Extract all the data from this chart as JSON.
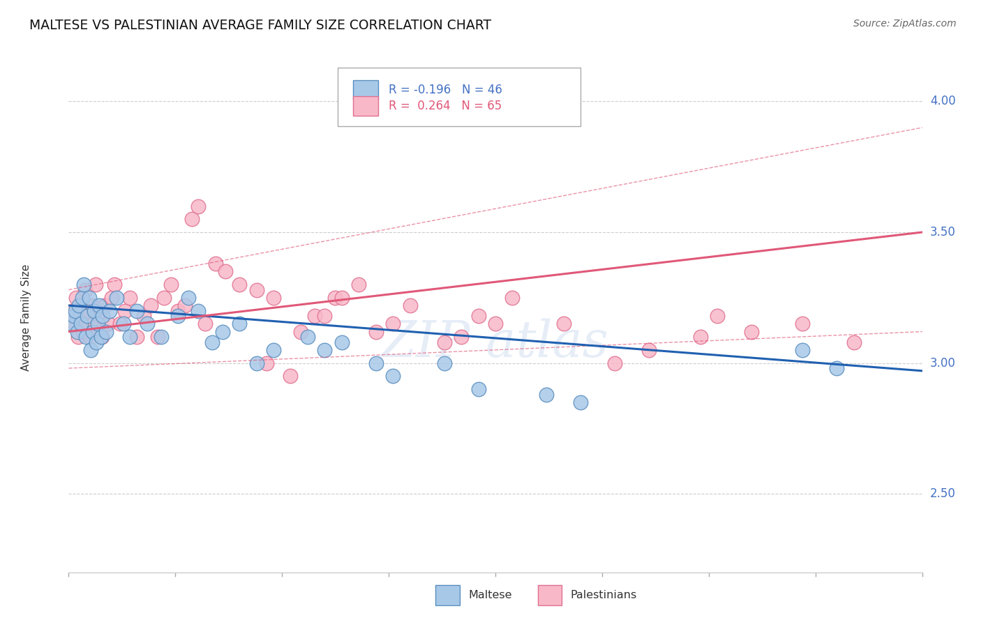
{
  "title": "MALTESE VS PALESTINIAN AVERAGE FAMILY SIZE CORRELATION CHART",
  "source": "Source: ZipAtlas.com",
  "ylabel": "Average Family Size",
  "xmin": 0.0,
  "xmax": 25.0,
  "ymin": 2.2,
  "ymax": 4.15,
  "yticks": [
    2.5,
    3.0,
    3.5,
    4.0
  ],
  "maltese_color": "#a8c8e8",
  "maltese_edge_color": "#5a8fc0",
  "maltese_line_color": "#2060b0",
  "palestinians_color": "#f8b8c8",
  "palestinians_edge_color": "#e07090",
  "palestinians_line_color": "#e05878",
  "maltese_line_y0": 3.22,
  "maltese_line_y1": 2.97,
  "palestinians_line_y0": 3.12,
  "palestinians_line_y1": 3.5,
  "palestinians_ci_upper_y0": 3.28,
  "palestinians_ci_upper_y1": 3.9,
  "palestinians_ci_lower_y0": 2.98,
  "palestinians_ci_lower_y1": 3.12,
  "maltese_x": [
    0.1,
    0.15,
    0.2,
    0.25,
    0.3,
    0.35,
    0.4,
    0.45,
    0.5,
    0.55,
    0.6,
    0.65,
    0.7,
    0.75,
    0.8,
    0.85,
    0.9,
    0.95,
    1.0,
    1.1,
    1.2,
    1.4,
    1.6,
    1.8,
    2.0,
    2.3,
    2.7,
    3.2,
    3.5,
    3.8,
    4.2,
    4.5,
    5.0,
    5.5,
    6.0,
    7.0,
    7.5,
    8.0,
    9.0,
    9.5,
    11.0,
    12.0,
    14.0,
    15.0,
    21.5,
    22.5
  ],
  "maltese_y": [
    3.15,
    3.18,
    3.2,
    3.12,
    3.22,
    3.15,
    3.25,
    3.3,
    3.1,
    3.18,
    3.25,
    3.05,
    3.12,
    3.2,
    3.08,
    3.15,
    3.22,
    3.1,
    3.18,
    3.12,
    3.2,
    3.25,
    3.15,
    3.1,
    3.2,
    3.15,
    3.1,
    3.18,
    3.25,
    3.2,
    3.08,
    3.12,
    3.15,
    3.0,
    3.05,
    3.1,
    3.05,
    3.08,
    3.0,
    2.95,
    3.0,
    2.9,
    2.88,
    2.85,
    3.05,
    2.98
  ],
  "palestinians_x": [
    0.12,
    0.18,
    0.22,
    0.28,
    0.33,
    0.38,
    0.42,
    0.48,
    0.52,
    0.58,
    0.62,
    0.68,
    0.72,
    0.78,
    0.82,
    0.88,
    0.92,
    0.98,
    1.05,
    1.15,
    1.25,
    1.35,
    1.5,
    1.65,
    1.8,
    2.0,
    2.2,
    2.4,
    2.6,
    2.8,
    3.0,
    3.2,
    3.4,
    3.6,
    3.8,
    4.0,
    4.3,
    4.6,
    5.0,
    5.5,
    6.0,
    6.8,
    7.2,
    7.8,
    8.5,
    9.5,
    10.0,
    11.5,
    12.0,
    13.0,
    14.5,
    16.0,
    17.0,
    18.5,
    19.0,
    20.0,
    21.5,
    23.0,
    5.8,
    6.5,
    7.5,
    8.0,
    9.0,
    11.0,
    12.5
  ],
  "palestinians_y": [
    3.2,
    3.15,
    3.25,
    3.1,
    3.18,
    3.22,
    3.12,
    3.28,
    3.15,
    3.2,
    3.1,
    3.22,
    3.15,
    3.3,
    3.2,
    3.12,
    3.18,
    3.1,
    3.22,
    3.15,
    3.25,
    3.3,
    3.15,
    3.2,
    3.25,
    3.1,
    3.18,
    3.22,
    3.1,
    3.25,
    3.3,
    3.2,
    3.22,
    3.55,
    3.6,
    3.15,
    3.38,
    3.35,
    3.3,
    3.28,
    3.25,
    3.12,
    3.18,
    3.25,
    3.3,
    3.15,
    3.22,
    3.1,
    3.18,
    3.25,
    3.15,
    3.0,
    3.05,
    3.1,
    3.18,
    3.12,
    3.15,
    3.08,
    3.0,
    2.95,
    3.18,
    3.25,
    3.12,
    3.08,
    3.15
  ]
}
